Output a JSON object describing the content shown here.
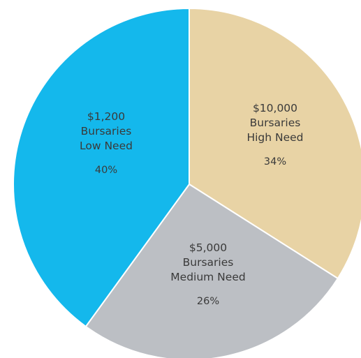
{
  "chart_data": {
    "type": "pie",
    "start": "12 o'clock",
    "direction": "clockwise",
    "slices": [
      {
        "value": 34,
        "lines": [
          "$10,000",
          "Bursaries",
          "High Need"
        ],
        "percent_label": "34%",
        "color": "#E8D3A5"
      },
      {
        "value": 26,
        "lines": [
          "$5,000",
          "Bursaries",
          "Medium Need"
        ],
        "percent_label": "26%",
        "color": "#BCBFC4"
      },
      {
        "value": 40,
        "lines": [
          "$1,200",
          "Bursaries",
          "Low Need"
        ],
        "percent_label": "40%",
        "color": "#14B8EC"
      }
    ],
    "slice_border_color": "#ffffff"
  }
}
